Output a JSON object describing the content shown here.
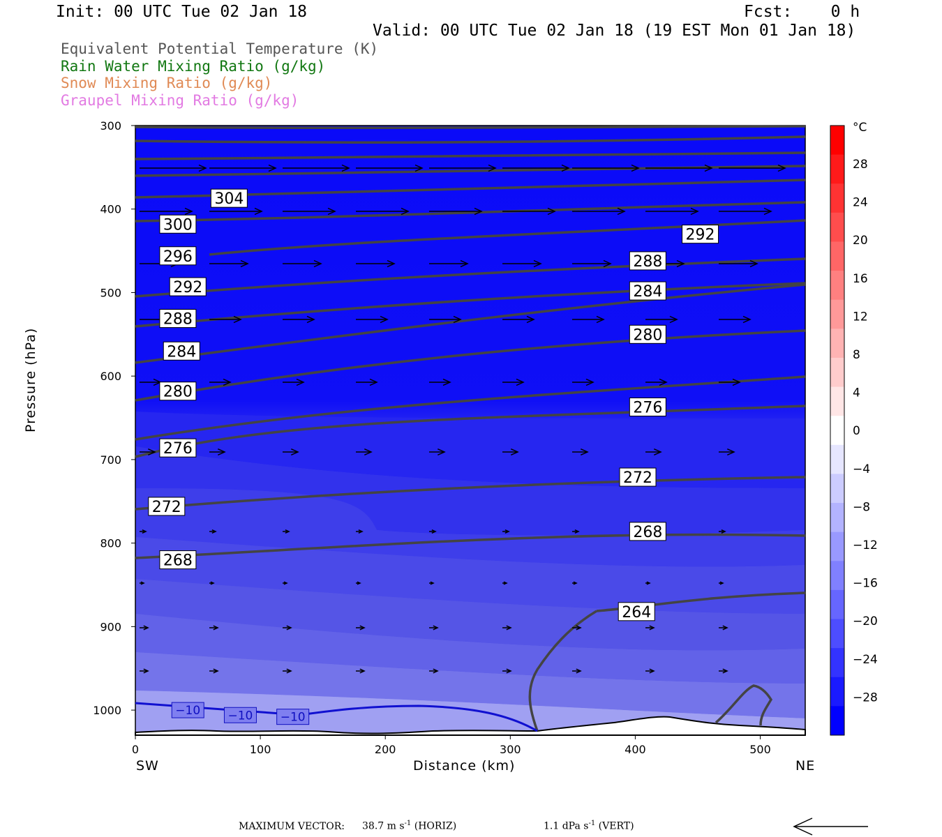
{
  "header": {
    "init": "Init: 00 UTC Tue 02 Jan 18",
    "fcst": "Fcst:    0 h",
    "valid": "Valid: 00 UTC Tue 02 Jan 18 (19 EST Mon 01 Jan 18)"
  },
  "legend": [
    {
      "label": "Equivalent Potential Temperature (K)",
      "color": "#555555"
    },
    {
      "label": "Rain Water Mixing Ratio (g/kg)",
      "color": "#117711"
    },
    {
      "label": "Snow Mixing Ratio (g/kg)",
      "color": "#e08a55"
    },
    {
      "label": "Graupel Mixing Ratio (g/kg)",
      "color": "#e27ae2"
    }
  ],
  "axes": {
    "ylabel": "Pressure (hPa)",
    "xlabel": "Distance (km)",
    "left_end": "SW",
    "right_end": "NE"
  },
  "colorbar": {
    "unit": "°C",
    "labels": [
      "28",
      "24",
      "20",
      "16",
      "12",
      "8",
      "4",
      "0",
      "−4",
      "−8",
      "−12",
      "−16",
      "−20",
      "−24",
      "−28"
    ]
  },
  "footer": {
    "max_vector_label": "MAXIMUM VECTOR:",
    "horiz_value": "38.7 m s",
    "horiz_exp": "-1",
    "horiz_tag": "(HORIZ)",
    "vert_value": "1.1 dPa s",
    "vert_exp": "-1",
    "vert_tag": "(VERT)"
  },
  "chart_data": {
    "type": "cross-section",
    "x_ticks": [
      0,
      100,
      200,
      300,
      400,
      500
    ],
    "xlim": [
      0,
      536
    ],
    "y_ticks": [
      300,
      400,
      500,
      600,
      700,
      800,
      900,
      1000
    ],
    "ylim": [
      1030,
      300
    ],
    "theta_e_labels": [
      {
        "value": "304",
        "x": 75,
        "p": 387
      },
      {
        "value": "300",
        "x": 34,
        "p": 418
      },
      {
        "value": "296",
        "x": 34,
        "p": 456
      },
      {
        "value": "292",
        "x": 42,
        "p": 493
      },
      {
        "value": "288",
        "x": 34,
        "p": 531
      },
      {
        "value": "284",
        "x": 37,
        "p": 570
      },
      {
        "value": "280",
        "x": 34,
        "p": 618
      },
      {
        "value": "276",
        "x": 34,
        "p": 686
      },
      {
        "value": "272",
        "x": 25,
        "p": 756
      },
      {
        "value": "268",
        "x": 34,
        "p": 820
      },
      {
        "value": "292",
        "x": 452,
        "p": 430
      },
      {
        "value": "288",
        "x": 410,
        "p": 462
      },
      {
        "value": "284",
        "x": 410,
        "p": 498
      },
      {
        "value": "280",
        "x": 410,
        "p": 550
      },
      {
        "value": "276",
        "x": 410,
        "p": 637
      },
      {
        "value": "272",
        "x": 402,
        "p": 721
      },
      {
        "value": "268",
        "x": 410,
        "p": 786
      },
      {
        "value": "264",
        "x": 401,
        "p": 882
      }
    ],
    "temperature_labels": [
      {
        "value": "−10",
        "x": 42,
        "p": 1000
      },
      {
        "value": "−10",
        "x": 84,
        "p": 1006
      },
      {
        "value": "−10",
        "x": 126,
        "p": 1008
      }
    ]
  }
}
